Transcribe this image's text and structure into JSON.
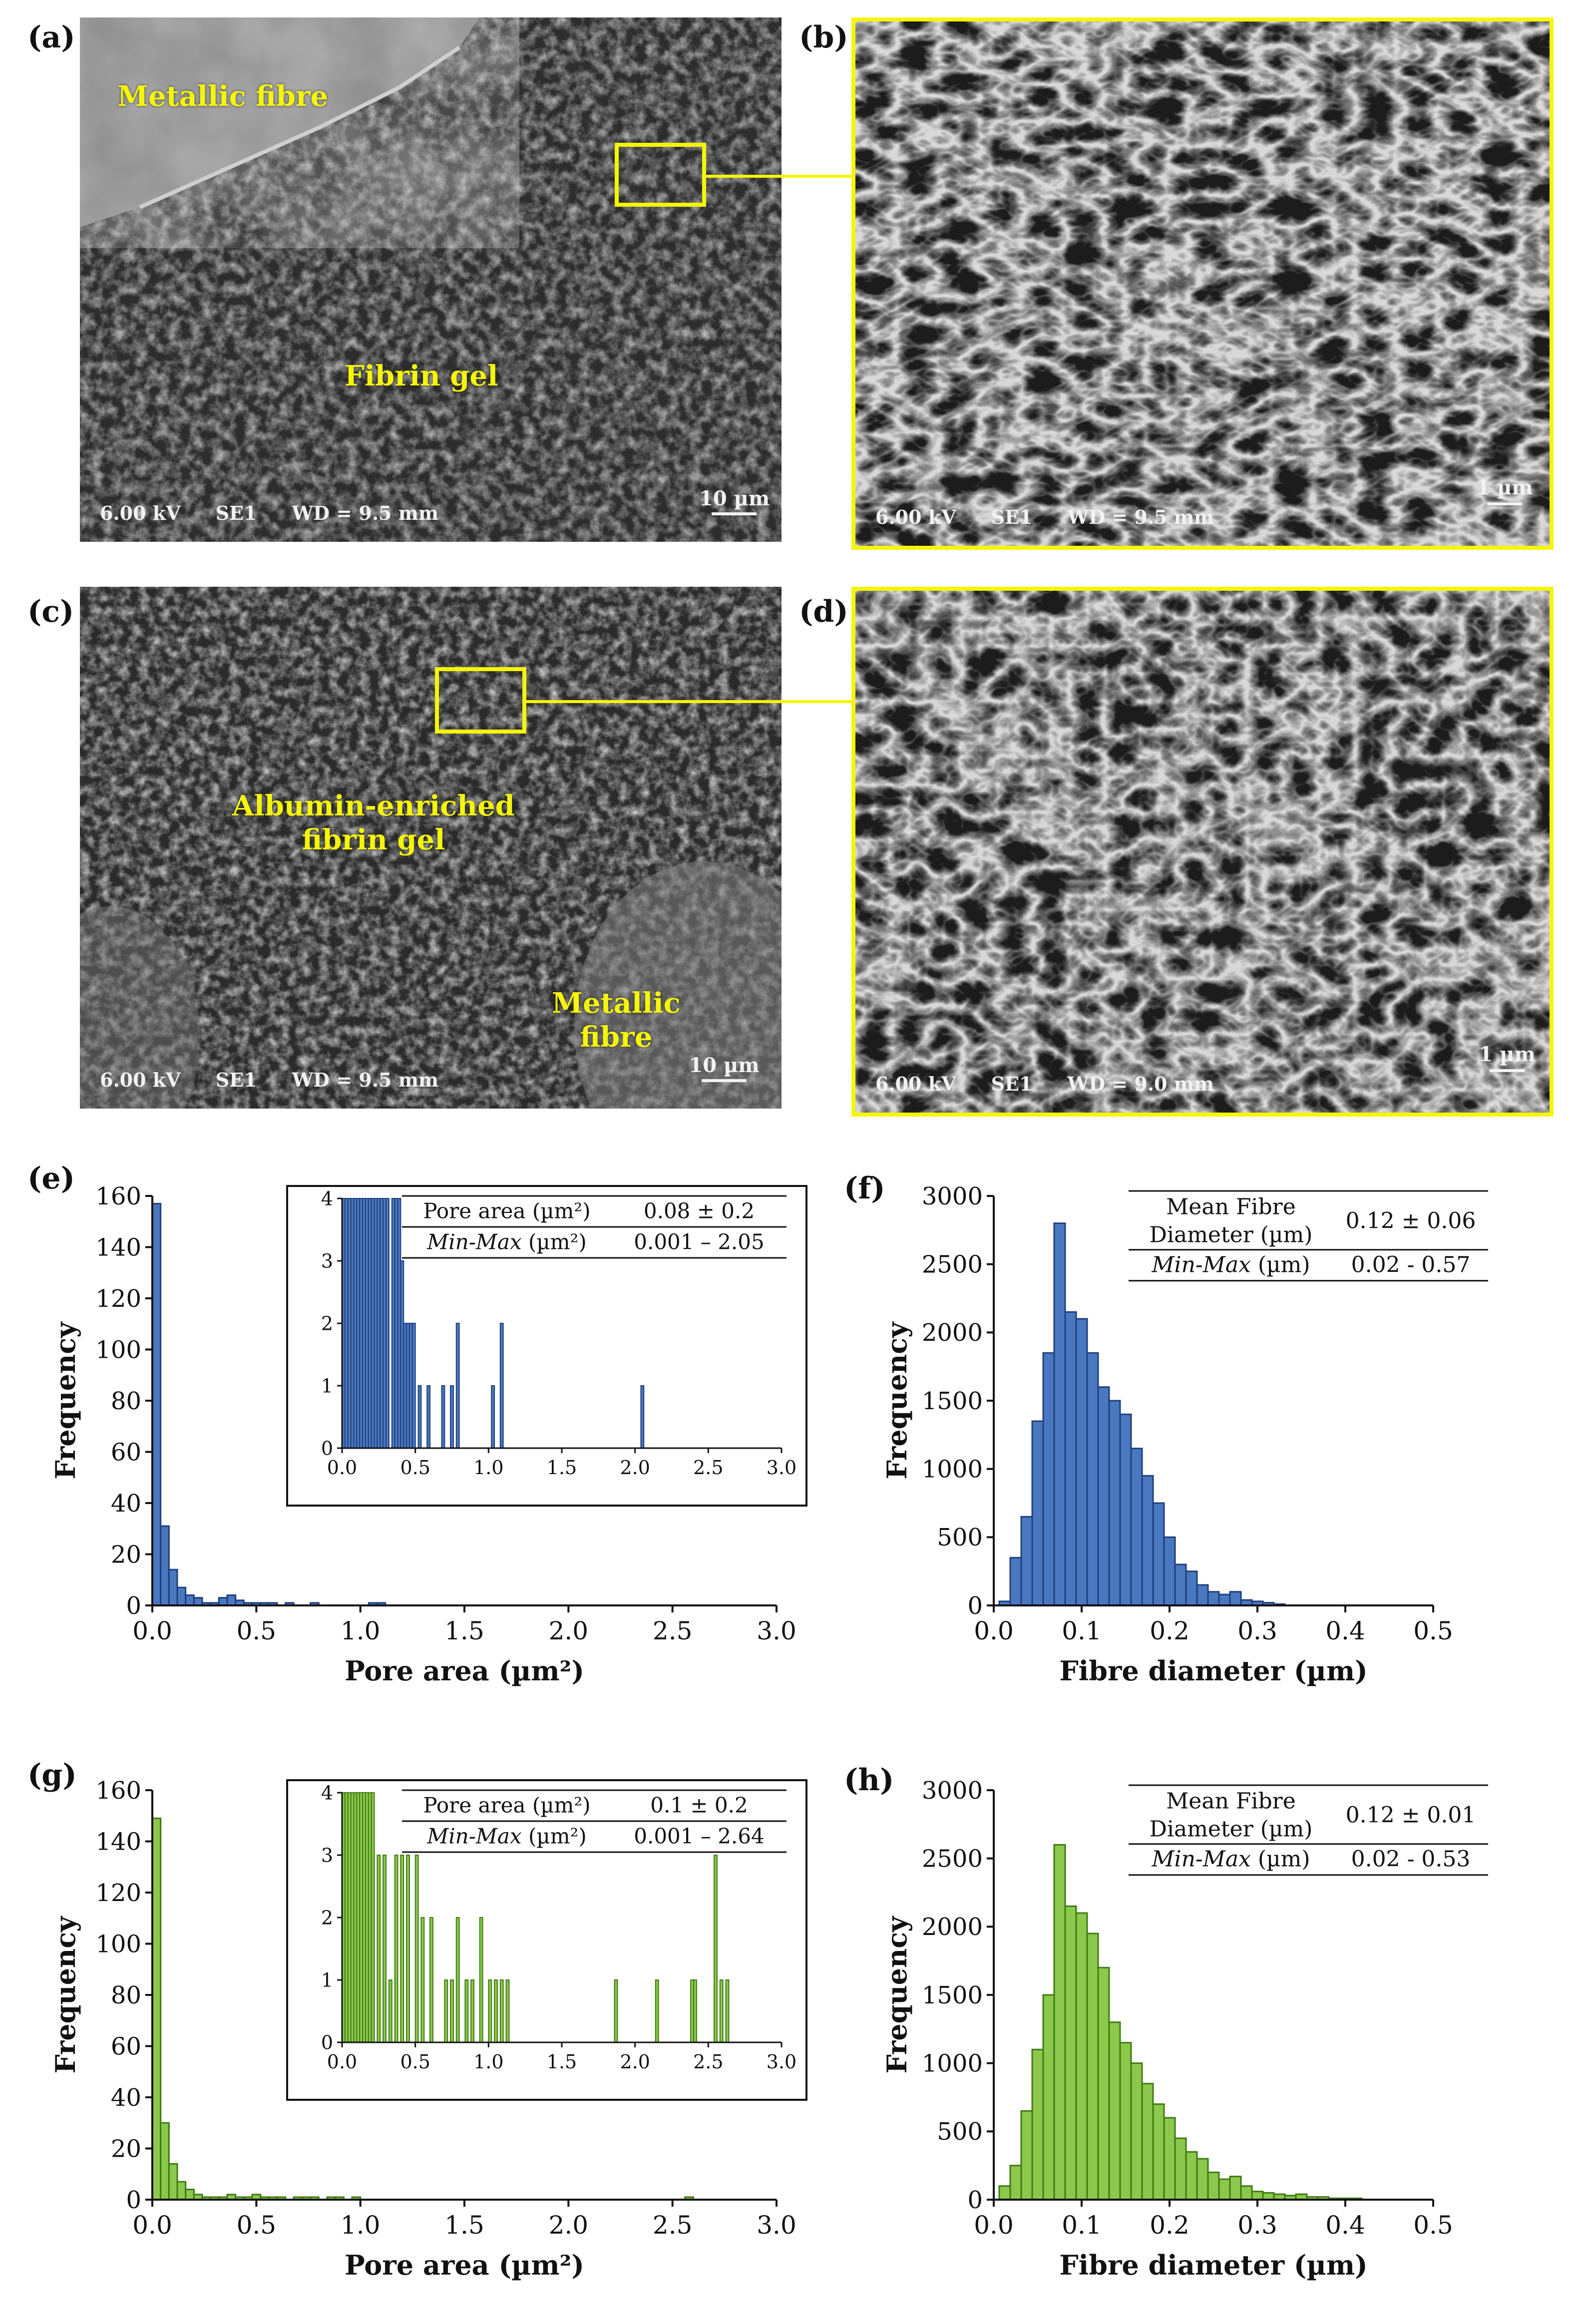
{
  "panels": {
    "a": {
      "letter": "(a)",
      "label1": "Metallic fibre",
      "label2": "Fibrin gel",
      "info": [
        "6.00 kV",
        "SE1",
        "WD = 9.5 mm"
      ],
      "scale": "10 µm"
    },
    "b": {
      "letter": "(b)",
      "info": [
        "6.00 kV",
        "SE1",
        "WD = 9.5 mm"
      ],
      "scale": "1 µm"
    },
    "c": {
      "letter": "(c)",
      "label1a": "Albumin-enriched",
      "label1b": "fibrin gel",
      "label2a": "Metallic",
      "label2b": "fibre",
      "info": [
        "6.00 kV",
        "SE1",
        "WD = 9.5 mm"
      ],
      "scale": "10 µm"
    },
    "d": {
      "letter": "(d)",
      "info": [
        "6.00 kV",
        "SE1",
        "WD = 9.0 mm"
      ],
      "scale": "1 µm"
    },
    "e": {
      "letter": "(e)"
    },
    "f": {
      "letter": "(f)"
    },
    "g": {
      "letter": "(g)"
    },
    "h": {
      "letter": "(h)"
    }
  },
  "colors": {
    "blue": "#4a78c0",
    "blue_edge": "#1f3f7a",
    "green": "#8cc84b",
    "green_edge": "#3d7a12",
    "yellow": "#f5f50a"
  },
  "chart_data": [
    {
      "id": "e",
      "type": "bar",
      "xlabel": "Pore area (µm²)",
      "ylabel": "Frequency",
      "xlim": [
        0,
        3.0
      ],
      "ylim": [
        0,
        160
      ],
      "xticks": [
        "0.0",
        "0.5",
        "1.0",
        "1.5",
        "2.0",
        "2.5",
        "3.0"
      ],
      "yticks": [
        "0",
        "20",
        "40",
        "60",
        "80",
        "100",
        "120",
        "140",
        "160"
      ],
      "bin_width": 0.04,
      "x": [
        0.02,
        0.06,
        0.1,
        0.14,
        0.18,
        0.22,
        0.26,
        0.3,
        0.34,
        0.38,
        0.42,
        0.46,
        0.5,
        0.54,
        0.58,
        0.62,
        0.66,
        0.7,
        0.74,
        0.78,
        0.82,
        0.86,
        0.9,
        0.94,
        0.98,
        1.02,
        1.06,
        1.1
      ],
      "values": [
        157,
        31,
        14,
        7,
        4,
        3,
        1,
        1,
        3,
        4,
        2,
        1,
        1,
        1,
        1,
        0,
        1,
        0,
        0,
        1,
        0,
        0,
        0,
        0,
        0,
        0,
        1,
        1
      ],
      "color": "blue",
      "inset": {
        "xlim": [
          0,
          3.0
        ],
        "ylim": [
          0,
          4
        ],
        "xticks": [
          "0.0",
          "0.5",
          "1.0",
          "1.5",
          "2.0",
          "2.5",
          "3.0"
        ],
        "yticks": [
          "0",
          "1",
          "2",
          "3",
          "4"
        ],
        "bin_width": 0.02,
        "x": [
          0.01,
          0.03,
          0.05,
          0.07,
          0.09,
          0.11,
          0.13,
          0.15,
          0.17,
          0.19,
          0.21,
          0.23,
          0.25,
          0.27,
          0.29,
          0.31,
          0.35,
          0.37,
          0.39,
          0.41,
          0.43,
          0.45,
          0.47,
          0.49,
          0.53,
          0.59,
          0.69,
          0.75,
          0.79,
          1.03,
          1.09,
          2.05
        ],
        "values": [
          4,
          4,
          4,
          4,
          4,
          4,
          4,
          4,
          4,
          4,
          4,
          4,
          4,
          4,
          4,
          4,
          4,
          4,
          4,
          3,
          2,
          2,
          2,
          2,
          1,
          1,
          1,
          1,
          2,
          1,
          2,
          1
        ],
        "table": [
          [
            "Pore area (µm²)",
            "0.08 ± 0.2"
          ],
          [
            "Min-Max (µm²)",
            "0.001 – 2.05"
          ]
        ]
      }
    },
    {
      "id": "f",
      "type": "bar",
      "xlabel": "Fibre diameter (µm)",
      "ylabel": "Frequency",
      "xlim": [
        0,
        0.5
      ],
      "ylim": [
        0,
        3000
      ],
      "xticks": [
        "0.0",
        "0.1",
        "0.2",
        "0.3",
        "0.4",
        "0.5"
      ],
      "yticks": [
        "0",
        "500",
        "1000",
        "1500",
        "2000",
        "2500",
        "3000"
      ],
      "bin_width": 0.0125,
      "x": [
        0.0125,
        0.025,
        0.0375,
        0.05,
        0.0625,
        0.075,
        0.0875,
        0.1,
        0.1125,
        0.125,
        0.1375,
        0.15,
        0.1625,
        0.175,
        0.1875,
        0.2,
        0.2125,
        0.225,
        0.2375,
        0.25,
        0.2625,
        0.275,
        0.2875,
        0.3,
        0.3125,
        0.325
      ],
      "values": [
        30,
        350,
        650,
        1350,
        1850,
        2800,
        2150,
        2100,
        1850,
        1600,
        1500,
        1400,
        1150,
        950,
        750,
        500,
        300,
        250,
        150,
        100,
        80,
        100,
        40,
        30,
        20,
        10
      ],
      "color": "blue",
      "table": [
        [
          "Mean Fibre Diameter (µm)",
          "0.12 ± 0.06"
        ],
        [
          "Min-Max (µm)",
          "0.02 - 0.57"
        ]
      ]
    },
    {
      "id": "g",
      "type": "bar",
      "xlabel": "Pore area (µm²)",
      "ylabel": "Frequency",
      "xlim": [
        0,
        3.0
      ],
      "ylim": [
        0,
        160
      ],
      "xticks": [
        "0.0",
        "0.5",
        "1.0",
        "1.5",
        "2.0",
        "2.5",
        "3.0"
      ],
      "yticks": [
        "0",
        "20",
        "40",
        "60",
        "80",
        "100",
        "120",
        "140",
        "160"
      ],
      "bin_width": 0.04,
      "x": [
        0.02,
        0.06,
        0.1,
        0.14,
        0.18,
        0.22,
        0.26,
        0.3,
        0.34,
        0.38,
        0.42,
        0.46,
        0.5,
        0.54,
        0.58,
        0.62,
        0.66,
        0.7,
        0.74,
        0.78,
        0.82,
        0.86,
        0.9,
        0.94,
        0.98,
        2.58
      ],
      "values": [
        149,
        30,
        14,
        7,
        4,
        2,
        1,
        1,
        1,
        2,
        1,
        1,
        2,
        1,
        1,
        1,
        0,
        1,
        1,
        1,
        0,
        1,
        1,
        0,
        1,
        1
      ],
      "color": "green",
      "inset": {
        "xlim": [
          0,
          3.0
        ],
        "ylim": [
          0,
          4
        ],
        "xticks": [
          "0.0",
          "0.5",
          "1.0",
          "1.5",
          "2.0",
          "2.5",
          "3.0"
        ],
        "yticks": [
          "0",
          "1",
          "2",
          "3",
          "4"
        ],
        "bin_width": 0.02,
        "x": [
          0.01,
          0.03,
          0.05,
          0.07,
          0.09,
          0.11,
          0.13,
          0.15,
          0.17,
          0.19,
          0.21,
          0.25,
          0.29,
          0.33,
          0.37,
          0.41,
          0.45,
          0.51,
          0.55,
          0.61,
          0.71,
          0.75,
          0.79,
          0.85,
          0.89,
          0.95,
          1.01,
          1.05,
          1.09,
          1.13,
          1.87,
          2.15,
          2.39,
          2.41,
          2.55,
          2.59,
          2.63
        ],
        "values": [
          4,
          4,
          4,
          4,
          4,
          4,
          4,
          4,
          4,
          4,
          4,
          3,
          3,
          1,
          3,
          3,
          3,
          3,
          2,
          2,
          1,
          1,
          2,
          1,
          1,
          2,
          1,
          1,
          1,
          1,
          1,
          1,
          1,
          1,
          3,
          1,
          1
        ],
        "table": [
          [
            "Pore area (µm²)",
            "0.1 ± 0.2"
          ],
          [
            "Min-Max (µm²)",
            "0.001 – 2.64"
          ]
        ]
      }
    },
    {
      "id": "h",
      "type": "bar",
      "xlabel": "Fibre diameter (µm)",
      "ylabel": "Frequency",
      "xlim": [
        0,
        0.5
      ],
      "ylim": [
        0,
        3000
      ],
      "xticks": [
        "0.0",
        "0.1",
        "0.2",
        "0.3",
        "0.4",
        "0.5"
      ],
      "yticks": [
        "0",
        "500",
        "1000",
        "1500",
        "2000",
        "2500",
        "3000"
      ],
      "bin_width": 0.0125,
      "x": [
        0.0125,
        0.025,
        0.0375,
        0.05,
        0.0625,
        0.075,
        0.0875,
        0.1,
        0.1125,
        0.125,
        0.1375,
        0.15,
        0.1625,
        0.175,
        0.1875,
        0.2,
        0.2125,
        0.225,
        0.2375,
        0.25,
        0.2625,
        0.275,
        0.2875,
        0.3,
        0.3125,
        0.325,
        0.3375,
        0.35,
        0.3625,
        0.375,
        0.3875,
        0.4,
        0.4125
      ],
      "values": [
        100,
        250,
        650,
        1100,
        1500,
        2600,
        2150,
        2100,
        1950,
        1700,
        1300,
        1150,
        1000,
        850,
        700,
        600,
        450,
        350,
        300,
        200,
        150,
        170,
        100,
        60,
        50,
        40,
        30,
        40,
        20,
        20,
        10,
        10,
        10
      ],
      "color": "green",
      "table": [
        [
          "Mean Fibre Diameter (µm)",
          "0.12 ± 0.01"
        ],
        [
          "Min-Max (µm)",
          "0.02 - 0.53"
        ]
      ]
    }
  ]
}
